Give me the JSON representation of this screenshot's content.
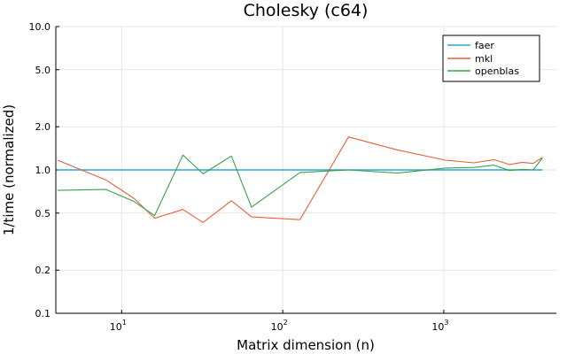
{
  "chart_data": {
    "type": "line",
    "title": "Cholesky (c64)",
    "xlabel": "Matrix dimension (n)",
    "ylabel": "1/time (normalized)",
    "xscale": "log",
    "yscale": "log",
    "xlim": [
      3.9,
      5000
    ],
    "ylim": [
      0.1,
      10.0
    ],
    "yticks": [
      0.1,
      0.2,
      0.5,
      1.0,
      2.0,
      5.0,
      10.0
    ],
    "ytick_labels": [
      "0.1",
      "0.2",
      "0.5",
      "1.0",
      "2.0",
      "5.0",
      "10.0"
    ],
    "xticks": [
      10,
      100,
      1000
    ],
    "xtick_labels": [
      {
        "base": "10",
        "exp": "1"
      },
      {
        "base": "10",
        "exp": "2"
      },
      {
        "base": "10",
        "exp": "3"
      }
    ],
    "grid": true,
    "legend_position": "top-right",
    "series": [
      {
        "name": "faer",
        "color": "#2fa4d0",
        "x": [
          4,
          8,
          12,
          16,
          24,
          32,
          48,
          64,
          128,
          256,
          512,
          1024,
          1536,
          2048,
          2560,
          3072,
          3584,
          4096
        ],
        "y": [
          1.0,
          1.0,
          1.0,
          1.0,
          1.0,
          1.0,
          1.0,
          1.0,
          1.0,
          1.0,
          1.0,
          1.0,
          1.0,
          1.0,
          1.0,
          1.0,
          1.0,
          1.0
        ]
      },
      {
        "name": "mkl",
        "color": "#e3613b",
        "x": [
          4,
          8,
          12,
          16,
          24,
          32,
          48,
          64,
          128,
          256,
          512,
          1024,
          1536,
          2048,
          2560,
          3072,
          3584,
          4096
        ],
        "y": [
          1.17,
          0.85,
          0.63,
          0.46,
          0.53,
          0.43,
          0.61,
          0.47,
          0.45,
          1.7,
          1.38,
          1.17,
          1.12,
          1.18,
          1.09,
          1.13,
          1.11,
          1.22
        ]
      },
      {
        "name": "openblas",
        "color": "#3aa04c",
        "x": [
          4,
          8,
          12,
          16,
          24,
          32,
          48,
          64,
          128,
          256,
          512,
          1024,
          1536,
          2048,
          2560,
          3072,
          3584,
          4096
        ],
        "y": [
          0.72,
          0.73,
          0.6,
          0.48,
          1.27,
          0.94,
          1.25,
          0.55,
          0.96,
          1.0,
          0.95,
          1.03,
          1.04,
          1.08,
          0.99,
          1.01,
          1.0,
          1.21
        ]
      }
    ]
  }
}
